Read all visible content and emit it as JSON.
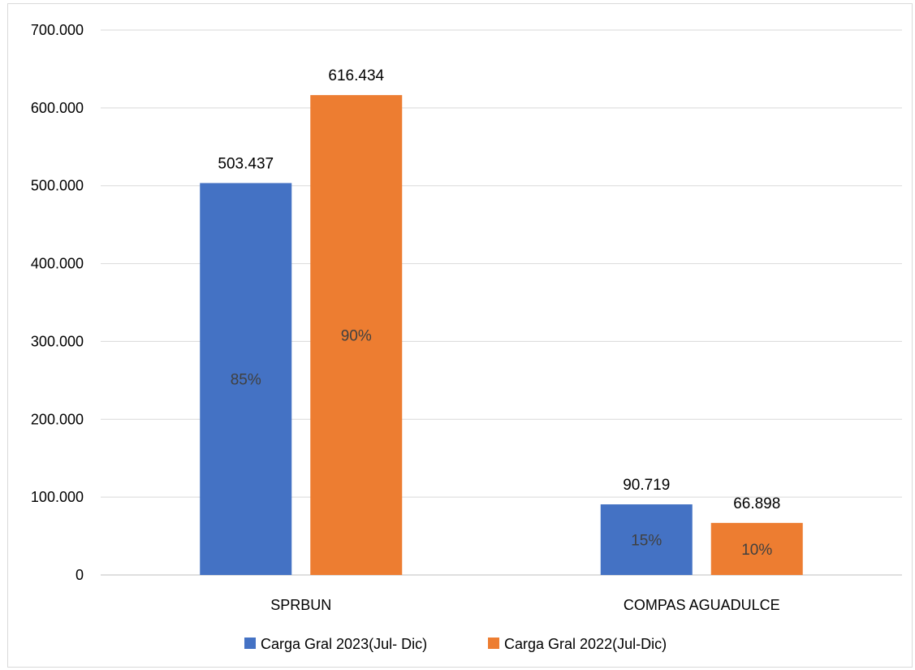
{
  "chart_data": {
    "type": "bar",
    "categories": [
      "SPRBUN",
      "COMPAS AGUADULCE"
    ],
    "series": [
      {
        "name": "Carga Gral 2023(Jul- Dic)",
        "color": "#4472C4",
        "values": [
          503437,
          90719
        ],
        "value_labels": [
          "503.437",
          "90.719"
        ],
        "share_labels": [
          "85%",
          "15%"
        ]
      },
      {
        "name": "Carga Gral 2022(Jul-Dic)",
        "color": "#ED7D31",
        "values": [
          616434,
          66898
        ],
        "value_labels": [
          "616.434",
          "66.898"
        ],
        "share_labels": [
          "90%",
          "10%"
        ]
      }
    ],
    "ylim": [
      0,
      700000
    ],
    "yticks": [
      0,
      100000,
      200000,
      300000,
      400000,
      500000,
      600000,
      700000
    ],
    "ytick_labels": [
      "0",
      "100.000",
      "200.000",
      "300.000",
      "400.000",
      "500.000",
      "600.000",
      "700.000"
    ],
    "grid": true,
    "legend_position": "bottom"
  }
}
